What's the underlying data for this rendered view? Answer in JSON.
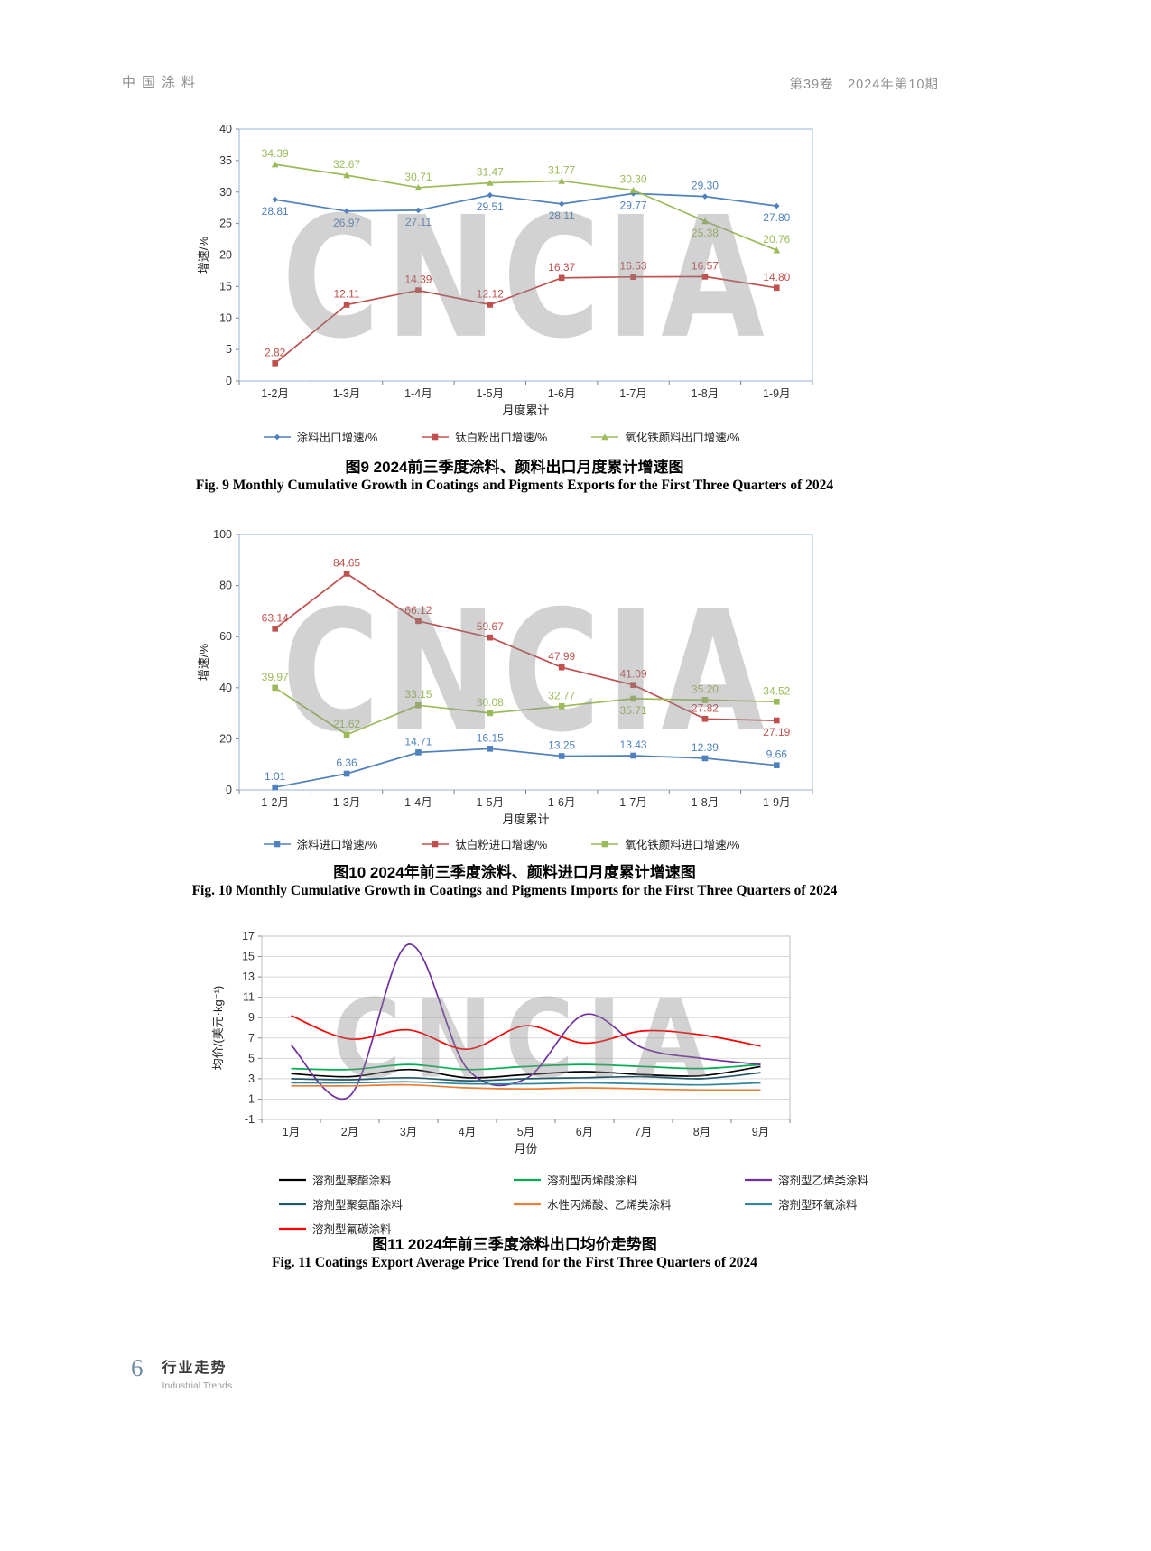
{
  "watermark": "CNCIA",
  "page": {
    "header": {
      "journal": "中国涂料",
      "issue": "第39卷　2024年第10期"
    },
    "footer": {
      "page_number": "6",
      "section_cn": "行业走势",
      "section_en": "Industrial Trends"
    }
  },
  "chart_data": [
    {
      "type": "line",
      "title_cn": "图9  2024前三季度涂料、颜料出口月度累计增速图",
      "title_en": "Fig. 9  Monthly Cumulative Growth in Coatings and Pigments Exports for the First Three Quarters of 2024",
      "xlabel": "月度累计",
      "ylabel": "增速/%",
      "ylim": [
        0,
        40
      ],
      "ytick_step": 5,
      "grid": false,
      "smooth": false,
      "show_labels": true,
      "border_color": "#95b3d7",
      "legend_position": "bottom",
      "categories": [
        "1-2月",
        "1-3月",
        "1-4月",
        "1-5月",
        "1-6月",
        "1-7月",
        "1-8月",
        "1-9月"
      ],
      "series": [
        {
          "name": "涂料出口增速/%",
          "color": "#4F81BD",
          "marker": "diamond",
          "values": [
            28.81,
            26.97,
            27.11,
            29.51,
            28.11,
            29.77,
            29.3,
            27.8
          ],
          "label_side": [
            "b",
            "b",
            "b",
            "b",
            "b",
            "b",
            "a",
            "b"
          ]
        },
        {
          "name": "钛白粉出口增速/%",
          "color": "#C0504D",
          "marker": "square",
          "values": [
            2.82,
            12.11,
            14.39,
            12.12,
            16.37,
            16.53,
            16.57,
            14.8
          ],
          "label_side": [
            "a",
            "a",
            "a",
            "a",
            "a",
            "a",
            "a",
            "a"
          ]
        },
        {
          "name": "氧化铁颜料出口增速/%",
          "color": "#9BBB59",
          "marker": "triangle",
          "values": [
            34.39,
            32.67,
            30.71,
            31.47,
            31.77,
            30.3,
            25.38,
            20.76
          ],
          "label_side": [
            "a",
            "a",
            "a",
            "a",
            "a",
            "a",
            "b",
            "a"
          ]
        }
      ]
    },
    {
      "type": "line",
      "title_cn": "图10  2024年前三季度涂料、颜料进口月度累计增速图",
      "title_en": "Fig. 10  Monthly Cumulative Growth in Coatings and Pigments Imports for the First Three Quarters of 2024",
      "xlabel": "月度累计",
      "ylabel": "增速/%",
      "ylim": [
        0,
        100
      ],
      "ytick_step": 20,
      "grid": false,
      "smooth": false,
      "show_labels": true,
      "border_color": "#95b3d7",
      "legend_position": "bottom",
      "categories": [
        "1-2月",
        "1-3月",
        "1-4月",
        "1-5月",
        "1-6月",
        "1-7月",
        "1-8月",
        "1-9月"
      ],
      "series": [
        {
          "name": "涂料进口增速/%",
          "color": "#4F81BD",
          "marker": "square",
          "values": [
            1.01,
            6.36,
            14.71,
            16.15,
            13.25,
            13.43,
            12.39,
            9.66
          ],
          "label_side": [
            "a",
            "a",
            "a",
            "a",
            "a",
            "a",
            "a",
            "a"
          ]
        },
        {
          "name": "钛白粉进口增速/%",
          "color": "#C0504D",
          "marker": "square",
          "values": [
            63.14,
            84.65,
            66.12,
            59.67,
            47.99,
            41.09,
            27.82,
            27.19
          ],
          "label_side": [
            "a",
            "a",
            "a",
            "a",
            "a",
            "a",
            "a",
            "b"
          ]
        },
        {
          "name": "氧化铁颜料进口增速/%",
          "color": "#9BBB59",
          "marker": "square",
          "values": [
            39.97,
            21.62,
            33.15,
            30.08,
            32.77,
            35.71,
            35.2,
            34.52
          ],
          "label_side": [
            "a",
            "a",
            "a",
            "a",
            "a",
            "b",
            "a",
            "a"
          ]
        }
      ]
    },
    {
      "type": "line",
      "title_cn": "图11  2024年前三季度涂料出口均价走势图",
      "title_en": "Fig. 11  Coatings Export Average Price Trend for the First Three Quarters of 2024",
      "xlabel": "月份",
      "ylabel": "均价/(美元·kg⁻¹)",
      "ylim": [
        -1,
        17
      ],
      "ytick_step": 2,
      "grid": true,
      "smooth": true,
      "show_labels": false,
      "border_color": "#bfbfbf",
      "legend_position": "bottom-left",
      "categories": [
        "1月",
        "2月",
        "3月",
        "4月",
        "5月",
        "6月",
        "7月",
        "8月",
        "9月"
      ],
      "series": [
        {
          "name": "溶剂型聚酯涂料",
          "color": "#000000",
          "values": [
            3.5,
            3.2,
            3.9,
            3.1,
            3.4,
            3.7,
            3.4,
            3.3,
            4.2
          ]
        },
        {
          "name": "溶剂型丙烯酸涂料",
          "color": "#00B050",
          "values": [
            4.0,
            3.9,
            4.4,
            3.9,
            4.2,
            4.4,
            4.2,
            4.0,
            4.4
          ]
        },
        {
          "name": "溶剂型乙烯类涂料",
          "color": "#7030A0",
          "values": [
            6.3,
            1.3,
            16.2,
            4.0,
            3.0,
            9.3,
            6.0,
            5.0,
            4.4
          ]
        },
        {
          "name": "溶剂型聚氨酯涂料",
          "color": "#215868",
          "values": [
            3.0,
            2.9,
            3.1,
            2.8,
            3.0,
            3.1,
            3.2,
            3.0,
            3.6
          ]
        },
        {
          "name": "水性丙烯酸、乙烯类涂料",
          "color": "#ED7D31",
          "values": [
            2.3,
            2.3,
            2.4,
            2.1,
            2.0,
            2.1,
            2.0,
            1.9,
            1.9
          ]
        },
        {
          "name": "溶剂型环氧涂料",
          "color": "#31859C",
          "values": [
            2.6,
            2.6,
            2.7,
            2.5,
            2.5,
            2.6,
            2.5,
            2.4,
            2.6
          ]
        },
        {
          "name": "溶剂型氟碳涂料",
          "color": "#FF0000",
          "values": [
            9.2,
            6.9,
            7.8,
            5.9,
            8.2,
            6.5,
            7.7,
            7.3,
            6.2
          ]
        }
      ]
    }
  ]
}
